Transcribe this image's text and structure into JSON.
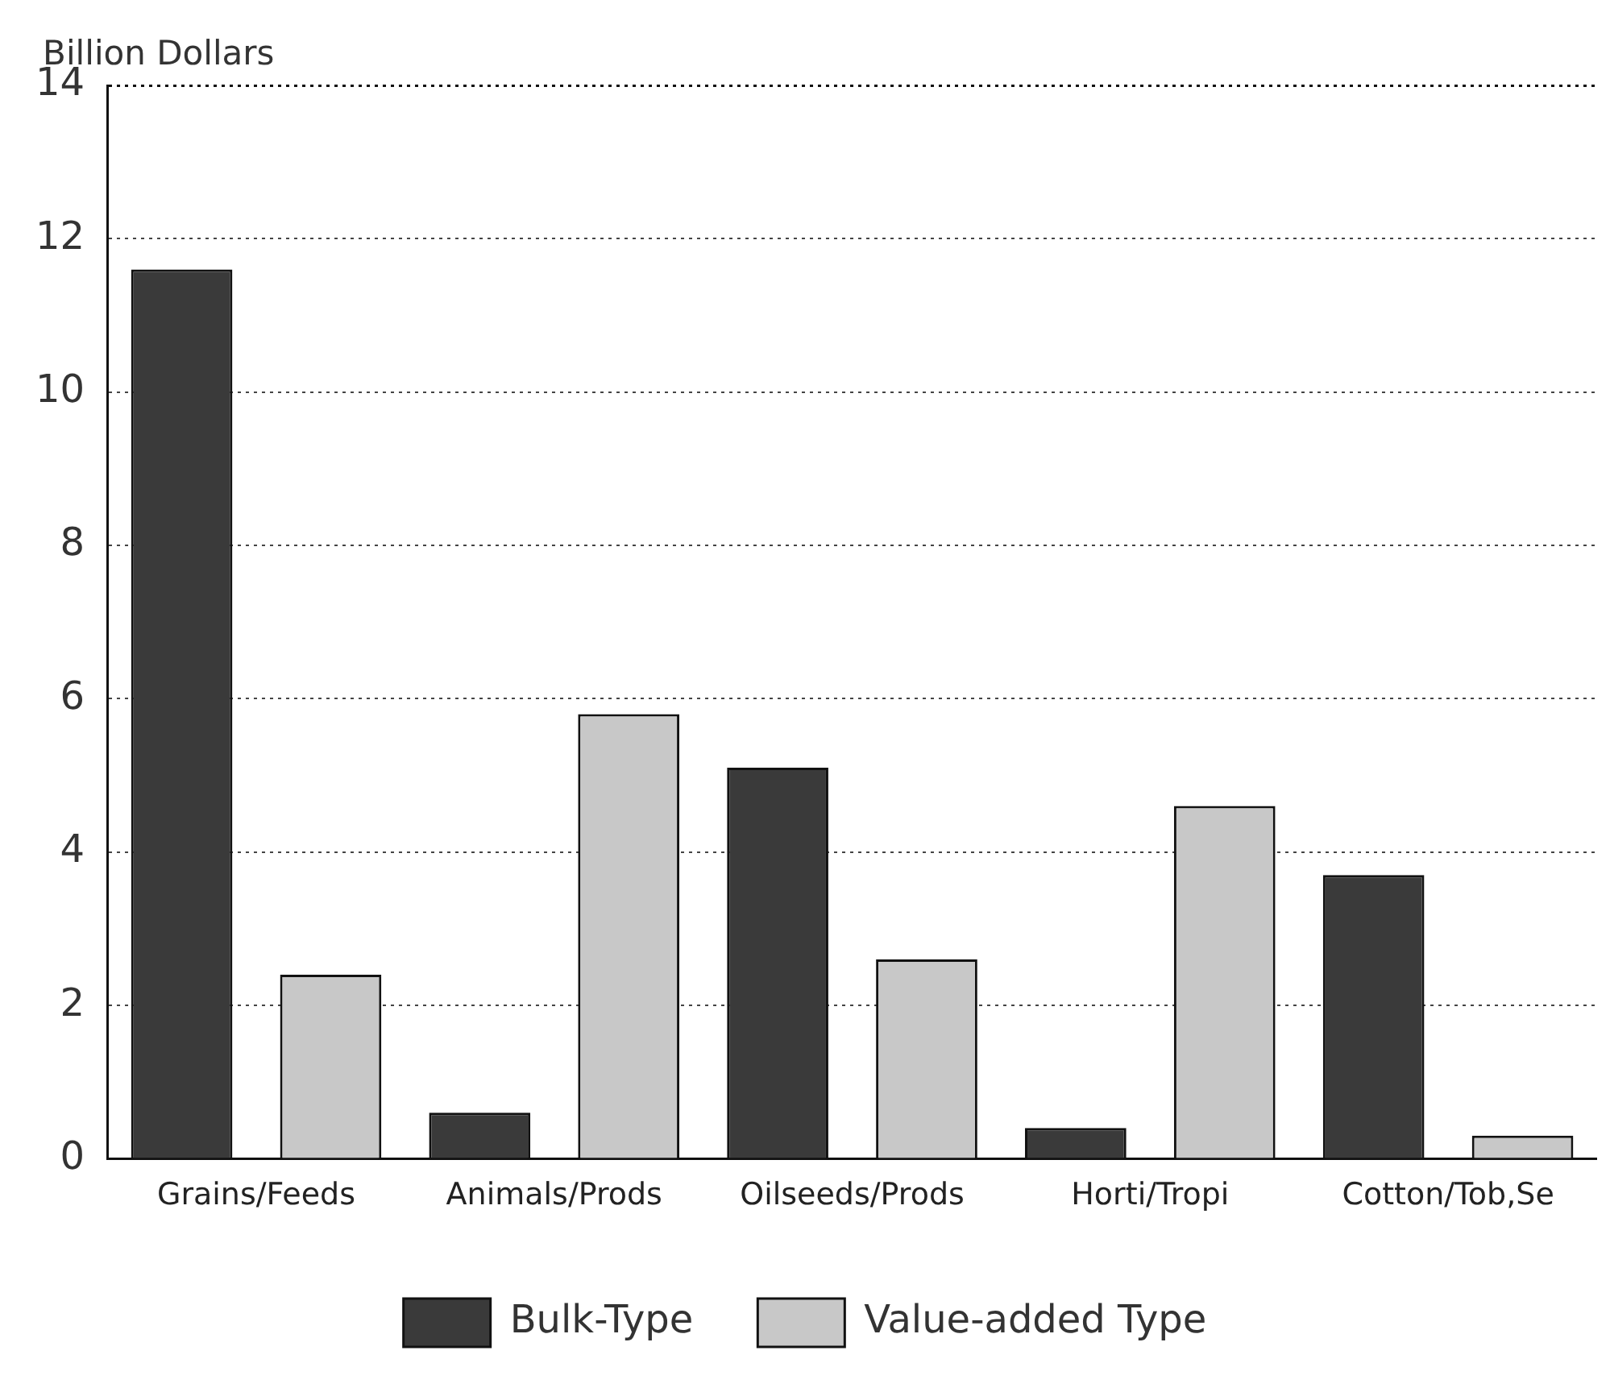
{
  "chart_data": {
    "type": "bar",
    "ylabel": "Billion Dollars",
    "categories": [
      "Grains/Feeds",
      "Animals/Prods",
      "Oilseeds/Prods",
      "Horti/Tropi",
      "Cotton/Tob,Se"
    ],
    "series": [
      {
        "name": "Bulk-Type",
        "color": "#3a3a3a",
        "values": [
          11.6,
          0.6,
          5.1,
          0.4,
          3.7
        ]
      },
      {
        "name": "Value-added Type",
        "color": "#c8c8c8",
        "values": [
          2.4,
          5.8,
          2.6,
          4.6,
          0.3
        ]
      }
    ],
    "ylim": [
      0,
      14
    ],
    "yticks": [
      0,
      2,
      4,
      6,
      8,
      10,
      12,
      14
    ],
    "grid": "y",
    "legend": "bottom"
  }
}
